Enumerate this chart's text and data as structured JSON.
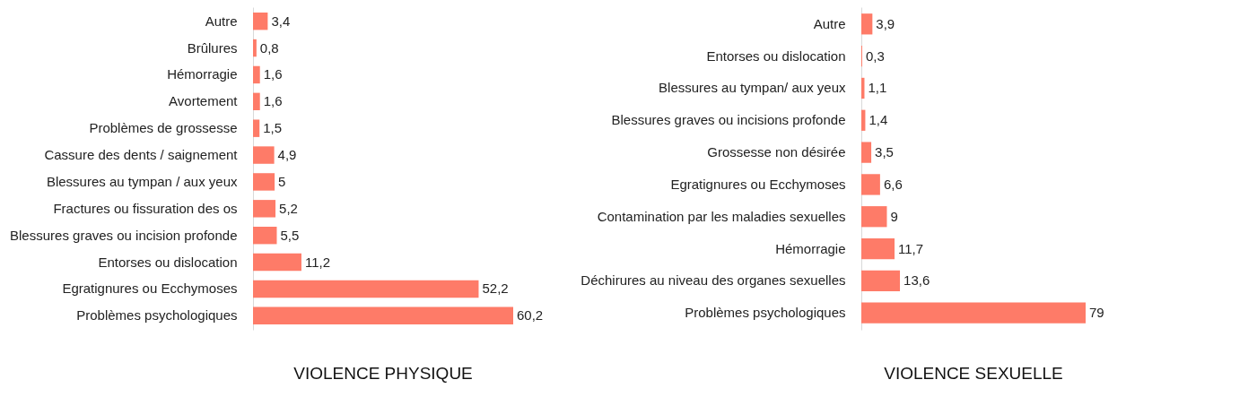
{
  "chart_data": [
    {
      "type": "bar",
      "orientation": "horizontal",
      "title": "VIOLENCE PHYSIQUE",
      "color": "#fe7b68",
      "grid": false,
      "categories": [
        "Autre",
        "Brûlures",
        "Hémorragie",
        "Avortement",
        "Problèmes de grossesse",
        "Cassure des dents / saignement",
        "Blessures au tympan / aux yeux",
        "Fractures ou fissuration des os",
        "Blessures graves ou incision profonde",
        "Entorses ou dislocation",
        "Egratignures ou Ecchymoses",
        "Problèmes psychologiques"
      ],
      "values": [
        3.4,
        0.8,
        1.6,
        1.6,
        1.5,
        4.9,
        5,
        5.2,
        5.5,
        11.2,
        52.2,
        60.2
      ],
      "value_labels": [
        "3,4",
        "0,8",
        "1,6",
        "1,6",
        "1,5",
        "4,9",
        "5",
        "5,2",
        "5,5",
        "11,2",
        "52,2",
        "60,2"
      ]
    },
    {
      "type": "bar",
      "orientation": "horizontal",
      "title": "VIOLENCE SEXUELLE",
      "color": "#fe7b68",
      "grid": false,
      "categories": [
        "Autre",
        "Entorses ou dislocation",
        "Blessures au tympan/ aux yeux",
        "Blessures graves ou incisions profonde",
        "Grossesse non désirée",
        "Egratignures ou Ecchymoses",
        "Contamination par les maladies sexuelles",
        "Hémorragie",
        "Déchirures au niveau des organes sexuelles",
        "Problèmes psychologiques"
      ],
      "values": [
        3.9,
        0.3,
        1.1,
        1.4,
        3.5,
        6.6,
        9,
        11.7,
        13.6,
        79
      ],
      "value_labels": [
        "3,9",
        "0,3",
        "1,1",
        "1,4",
        "3,5",
        "6,6",
        "9",
        "11,7",
        "13,6",
        "79"
      ]
    }
  ]
}
